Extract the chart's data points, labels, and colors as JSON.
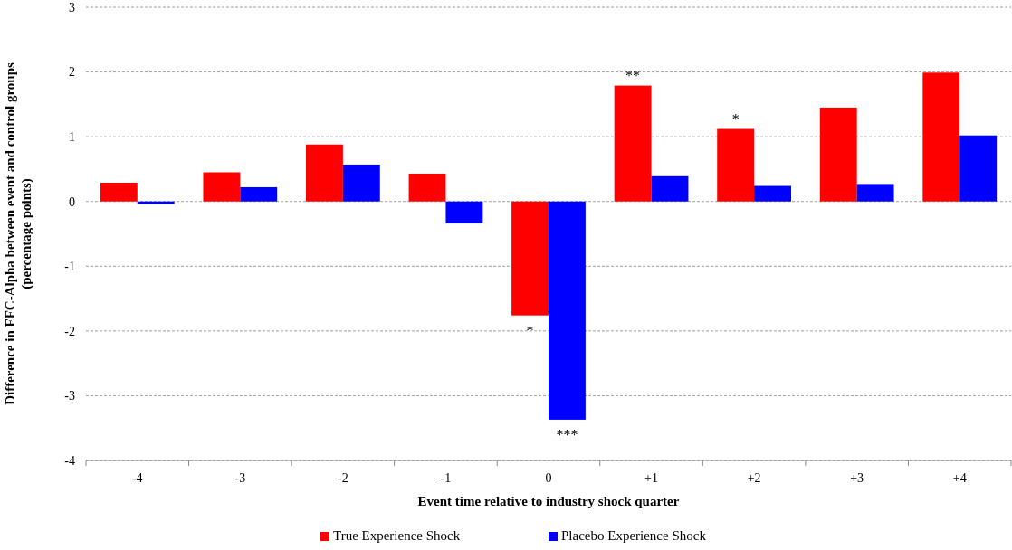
{
  "chart_data": {
    "type": "bar",
    "xlabel": "Event time relative to industry shock quarter",
    "ylabel": "Difference in FFC-Alpha between event and control groups\n(percentage points)",
    "categories": [
      "-4",
      "-3",
      "-2",
      "-1",
      "0",
      "+1",
      "+2",
      "+3",
      "+4"
    ],
    "series": [
      {
        "name": "True Experience Shock",
        "color": "#ff0000",
        "values": [
          0.29,
          0.45,
          0.88,
          0.43,
          -1.76,
          1.79,
          1.12,
          1.45,
          1.99
        ]
      },
      {
        "name": "Placebo Experience Shock",
        "color": "#0000ff",
        "values": [
          -0.04,
          0.22,
          0.57,
          -0.34,
          -3.37,
          0.39,
          0.24,
          0.27,
          1.02
        ]
      }
    ],
    "ylim": [
      -4,
      3
    ],
    "yticks": [
      -4,
      -3,
      -2,
      -1,
      0,
      1,
      2,
      3
    ],
    "grid": "y",
    "legend": "bottom",
    "annotations": [
      {
        "text": "**",
        "x": "+1",
        "y": 1.79
      },
      {
        "text": "*",
        "x": "+2",
        "y": 1.12
      },
      {
        "text": "*",
        "x": "0",
        "y": -1.76
      },
      {
        "text": "***",
        "x": "0",
        "y": -3.37
      }
    ]
  }
}
